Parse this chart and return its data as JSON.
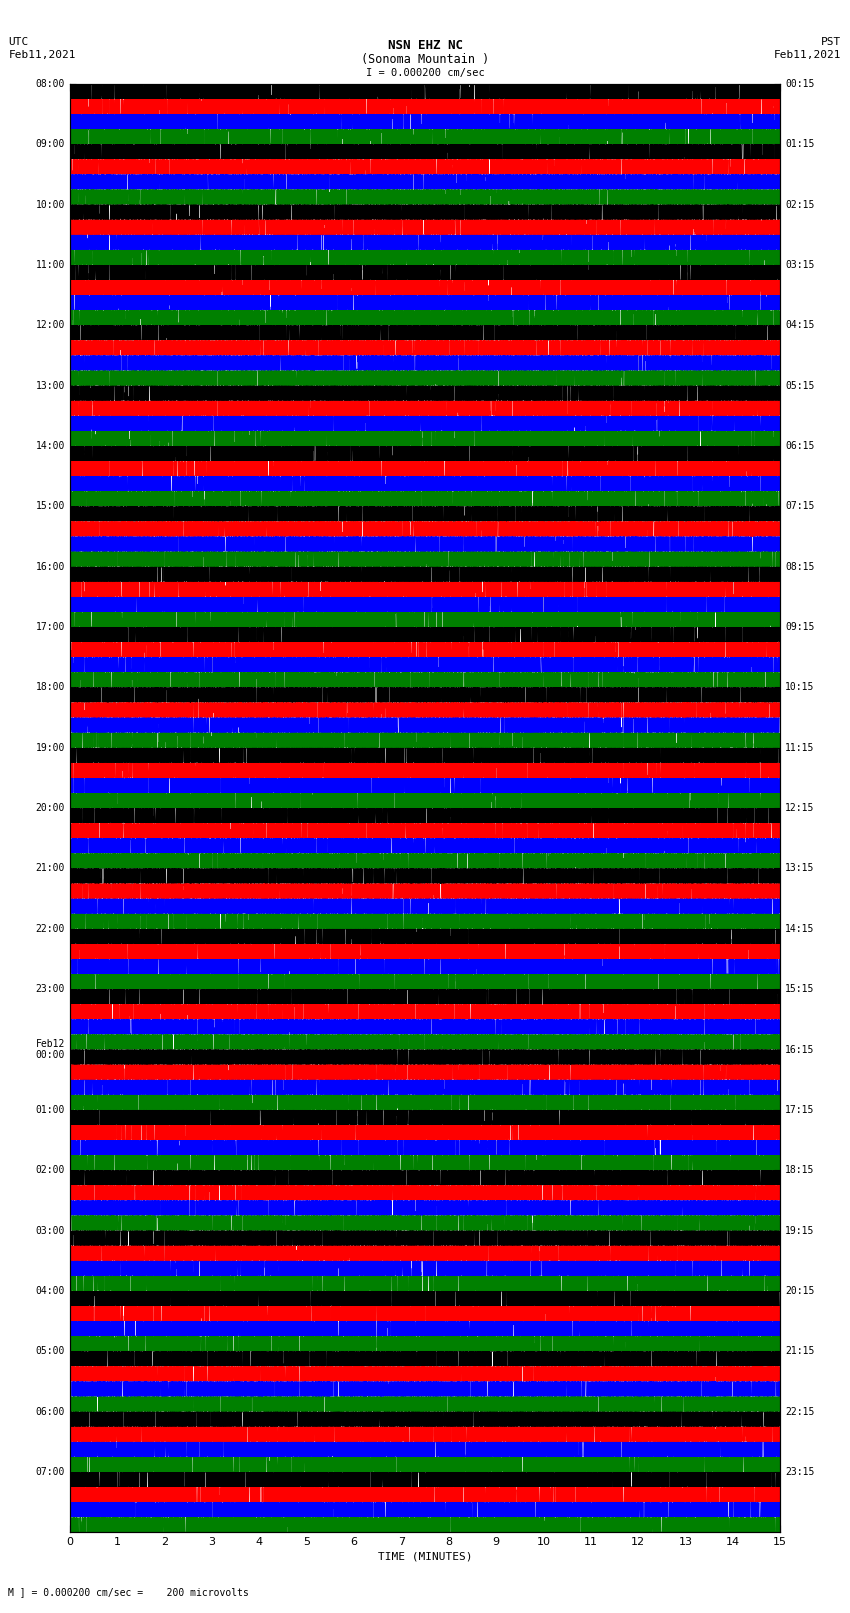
{
  "title_line1": "NSN EHZ NC",
  "title_line2": "(Sonoma Mountain )",
  "scale_label": "I = 0.000200 cm/sec",
  "left_header_line1": "UTC",
  "left_header_line2": "Feb11,2021",
  "right_header_line1": "PST",
  "right_header_line2": "Feb11,2021",
  "bottom_note": "M ] = 0.000200 cm/sec =    200 microvolts",
  "xlabel": "TIME (MINUTES)",
  "xlim": [
    0,
    15
  ],
  "xticks": [
    0,
    1,
    2,
    3,
    4,
    5,
    6,
    7,
    8,
    9,
    10,
    11,
    12,
    13,
    14,
    15
  ],
  "colors": [
    "black",
    "red",
    "blue",
    "green"
  ],
  "bg_color": "white",
  "left_ytick_labels": [
    "08:00",
    "09:00",
    "10:00",
    "11:00",
    "12:00",
    "13:00",
    "14:00",
    "15:00",
    "16:00",
    "17:00",
    "18:00",
    "19:00",
    "20:00",
    "21:00",
    "22:00",
    "23:00",
    "Feb12\n00:00",
    "01:00",
    "02:00",
    "03:00",
    "04:00",
    "05:00",
    "06:00",
    "07:00"
  ],
  "right_ytick_labels": [
    "00:15",
    "01:15",
    "02:15",
    "03:15",
    "04:15",
    "05:15",
    "06:15",
    "07:15",
    "08:15",
    "09:15",
    "10:15",
    "11:15",
    "12:15",
    "13:15",
    "14:15",
    "15:15",
    "16:15",
    "17:15",
    "18:15",
    "19:15",
    "20:15",
    "21:15",
    "22:15",
    "23:15"
  ],
  "num_rows": 24,
  "traces_per_row": 4,
  "seed": 12345,
  "vline_color": "#888888",
  "vline_alpha": 0.5,
  "vline_lw": 0.5
}
